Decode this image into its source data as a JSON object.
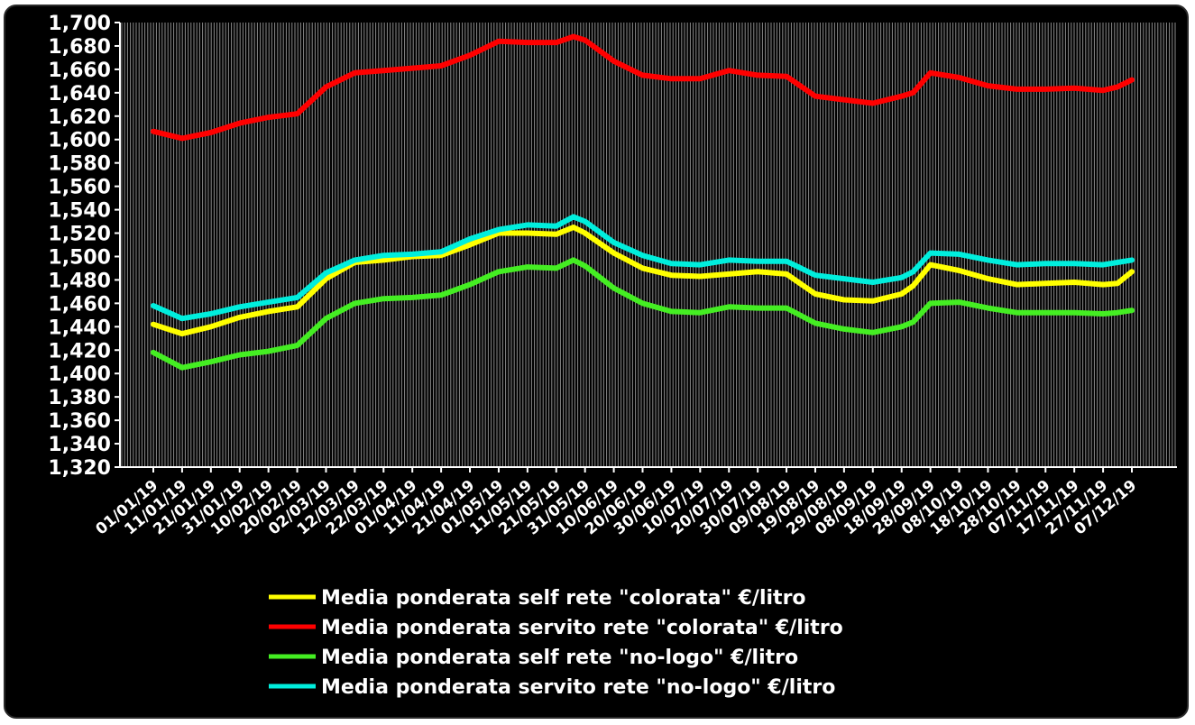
{
  "chart_data": {
    "type": "line",
    "title": "",
    "xlabel": "",
    "ylabel": "",
    "ylim": [
      1.32,
      1.7
    ],
    "y_ticks": [
      "1,320",
      "1,340",
      "1,360",
      "1,380",
      "1,400",
      "1,420",
      "1,440",
      "1,460",
      "1,480",
      "1,500",
      "1,520",
      "1,540",
      "1,560",
      "1,580",
      "1,600",
      "1,620",
      "1,640",
      "1,660",
      "1,680",
      "1,700"
    ],
    "x_tick_labels": [
      "01/01/19",
      "11/01/19",
      "21/01/19",
      "31/01/19",
      "10/02/19",
      "20/02/19",
      "02/03/19",
      "12/03/19",
      "22/03/19",
      "01/04/19",
      "11/04/19",
      "21/04/19",
      "01/05/19",
      "11/05/19",
      "21/05/19",
      "31/05/19",
      "10/06/19",
      "20/06/19",
      "30/06/19",
      "10/07/19",
      "20/07/19",
      "30/07/19",
      "09/08/19",
      "19/08/19",
      "29/08/19",
      "08/09/19",
      "18/09/19",
      "28/09/19",
      "08/10/19",
      "18/10/19",
      "28/10/19",
      "07/11/19",
      "17/11/19",
      "27/11/19",
      "07/12/19"
    ],
    "x_range": [
      "01/01/19",
      "07/12/19"
    ],
    "grid": "vertical dense",
    "legend_position": "bottom",
    "colors": {
      "background": "#000000",
      "text": "#ffffff",
      "self_colorata": "#ffff00",
      "servito_colorata": "#ff0000",
      "self_nologo": "#44ee22",
      "servito_nologo": "#00eedd"
    },
    "series": [
      {
        "name": "Media ponderata self rete \"colorata\" €/litro",
        "color": "#ffff00",
        "points": [
          [
            "01/01/19",
            1.442
          ],
          [
            "11/01/19",
            1.434
          ],
          [
            "21/01/19",
            1.44
          ],
          [
            "31/01/19",
            1.448
          ],
          [
            "10/02/19",
            1.453
          ],
          [
            "20/02/19",
            1.457
          ],
          [
            "02/03/19",
            1.481
          ],
          [
            "12/03/19",
            1.495
          ],
          [
            "22/03/19",
            1.497
          ],
          [
            "01/04/19",
            1.5
          ],
          [
            "11/04/19",
            1.501
          ],
          [
            "21/04/19",
            1.51
          ],
          [
            "01/05/19",
            1.52
          ],
          [
            "11/05/19",
            1.52
          ],
          [
            "21/05/19",
            1.519
          ],
          [
            "27/05/19",
            1.525
          ],
          [
            "31/05/19",
            1.52
          ],
          [
            "10/06/19",
            1.503
          ],
          [
            "20/06/19",
            1.49
          ],
          [
            "30/06/19",
            1.484
          ],
          [
            "10/07/19",
            1.483
          ],
          [
            "20/07/19",
            1.485
          ],
          [
            "30/07/19",
            1.487
          ],
          [
            "09/08/19",
            1.485
          ],
          [
            "19/08/19",
            1.468
          ],
          [
            "29/08/19",
            1.463
          ],
          [
            "08/09/19",
            1.462
          ],
          [
            "18/09/19",
            1.468
          ],
          [
            "22/09/19",
            1.475
          ],
          [
            "28/09/19",
            1.493
          ],
          [
            "08/10/19",
            1.488
          ],
          [
            "18/10/19",
            1.481
          ],
          [
            "28/10/19",
            1.476
          ],
          [
            "07/11/19",
            1.477
          ],
          [
            "17/11/19",
            1.478
          ],
          [
            "27/11/19",
            1.476
          ],
          [
            "02/12/19",
            1.477
          ],
          [
            "07/12/19",
            1.487
          ]
        ]
      },
      {
        "name": "Media ponderata servito rete \"colorata\" €/litro",
        "color": "#ff0000",
        "points": [
          [
            "01/01/19",
            1.607
          ],
          [
            "11/01/19",
            1.601
          ],
          [
            "21/01/19",
            1.606
          ],
          [
            "31/01/19",
            1.614
          ],
          [
            "10/02/19",
            1.619
          ],
          [
            "20/02/19",
            1.622
          ],
          [
            "02/03/19",
            1.645
          ],
          [
            "12/03/19",
            1.657
          ],
          [
            "22/03/19",
            1.659
          ],
          [
            "01/04/19",
            1.661
          ],
          [
            "11/04/19",
            1.663
          ],
          [
            "21/04/19",
            1.672
          ],
          [
            "01/05/19",
            1.684
          ],
          [
            "11/05/19",
            1.683
          ],
          [
            "21/05/19",
            1.683
          ],
          [
            "27/05/19",
            1.688
          ],
          [
            "31/05/19",
            1.685
          ],
          [
            "10/06/19",
            1.667
          ],
          [
            "20/06/19",
            1.655
          ],
          [
            "30/06/19",
            1.652
          ],
          [
            "10/07/19",
            1.652
          ],
          [
            "20/07/19",
            1.659
          ],
          [
            "30/07/19",
            1.655
          ],
          [
            "09/08/19",
            1.654
          ],
          [
            "19/08/19",
            1.637
          ],
          [
            "29/08/19",
            1.634
          ],
          [
            "08/09/19",
            1.631
          ],
          [
            "18/09/19",
            1.637
          ],
          [
            "22/09/19",
            1.64
          ],
          [
            "28/09/19",
            1.657
          ],
          [
            "08/10/19",
            1.653
          ],
          [
            "18/10/19",
            1.646
          ],
          [
            "28/10/19",
            1.643
          ],
          [
            "07/11/19",
            1.643
          ],
          [
            "17/11/19",
            1.644
          ],
          [
            "27/11/19",
            1.642
          ],
          [
            "02/12/19",
            1.645
          ],
          [
            "07/12/19",
            1.651
          ]
        ]
      },
      {
        "name": "Media ponderata self rete \"no-logo\" €/litro",
        "color": "#44ee22",
        "points": [
          [
            "01/01/19",
            1.418
          ],
          [
            "11/01/19",
            1.405
          ],
          [
            "21/01/19",
            1.41
          ],
          [
            "31/01/19",
            1.416
          ],
          [
            "10/02/19",
            1.419
          ],
          [
            "20/02/19",
            1.424
          ],
          [
            "02/03/19",
            1.447
          ],
          [
            "12/03/19",
            1.46
          ],
          [
            "22/03/19",
            1.464
          ],
          [
            "01/04/19",
            1.465
          ],
          [
            "11/04/19",
            1.467
          ],
          [
            "21/04/19",
            1.476
          ],
          [
            "01/05/19",
            1.487
          ],
          [
            "11/05/19",
            1.491
          ],
          [
            "21/05/19",
            1.49
          ],
          [
            "27/05/19",
            1.497
          ],
          [
            "31/05/19",
            1.492
          ],
          [
            "10/06/19",
            1.473
          ],
          [
            "20/06/19",
            1.46
          ],
          [
            "30/06/19",
            1.453
          ],
          [
            "10/07/19",
            1.452
          ],
          [
            "20/07/19",
            1.457
          ],
          [
            "30/07/19",
            1.456
          ],
          [
            "09/08/19",
            1.456
          ],
          [
            "19/08/19",
            1.443
          ],
          [
            "29/08/19",
            1.438
          ],
          [
            "08/09/19",
            1.435
          ],
          [
            "18/09/19",
            1.44
          ],
          [
            "22/09/19",
            1.444
          ],
          [
            "28/09/19",
            1.46
          ],
          [
            "08/10/19",
            1.461
          ],
          [
            "18/10/19",
            1.456
          ],
          [
            "28/10/19",
            1.452
          ],
          [
            "07/11/19",
            1.452
          ],
          [
            "17/11/19",
            1.452
          ],
          [
            "27/11/19",
            1.451
          ],
          [
            "02/12/19",
            1.452
          ],
          [
            "07/12/19",
            1.454
          ]
        ]
      },
      {
        "name": "Media ponderata servito rete \"no-logo\" €/litro",
        "color": "#00eedd",
        "points": [
          [
            "01/01/19",
            1.458
          ],
          [
            "11/01/19",
            1.447
          ],
          [
            "21/01/19",
            1.451
          ],
          [
            "31/01/19",
            1.457
          ],
          [
            "10/02/19",
            1.461
          ],
          [
            "20/02/19",
            1.465
          ],
          [
            "02/03/19",
            1.486
          ],
          [
            "12/03/19",
            1.497
          ],
          [
            "22/03/19",
            1.501
          ],
          [
            "01/04/19",
            1.502
          ],
          [
            "11/04/19",
            1.504
          ],
          [
            "21/04/19",
            1.515
          ],
          [
            "01/05/19",
            1.523
          ],
          [
            "11/05/19",
            1.527
          ],
          [
            "21/05/19",
            1.526
          ],
          [
            "27/05/19",
            1.534
          ],
          [
            "31/05/19",
            1.53
          ],
          [
            "10/06/19",
            1.512
          ],
          [
            "20/06/19",
            1.501
          ],
          [
            "30/06/19",
            1.494
          ],
          [
            "10/07/19",
            1.493
          ],
          [
            "20/07/19",
            1.497
          ],
          [
            "30/07/19",
            1.496
          ],
          [
            "09/08/19",
            1.496
          ],
          [
            "19/08/19",
            1.484
          ],
          [
            "29/08/19",
            1.481
          ],
          [
            "08/09/19",
            1.478
          ],
          [
            "18/09/19",
            1.482
          ],
          [
            "22/09/19",
            1.487
          ],
          [
            "28/09/19",
            1.503
          ],
          [
            "08/10/19",
            1.502
          ],
          [
            "18/10/19",
            1.497
          ],
          [
            "28/10/19",
            1.493
          ],
          [
            "07/11/19",
            1.494
          ],
          [
            "17/11/19",
            1.494
          ],
          [
            "27/11/19",
            1.493
          ],
          [
            "02/12/19",
            1.495
          ],
          [
            "07/12/19",
            1.497
          ]
        ]
      }
    ]
  }
}
